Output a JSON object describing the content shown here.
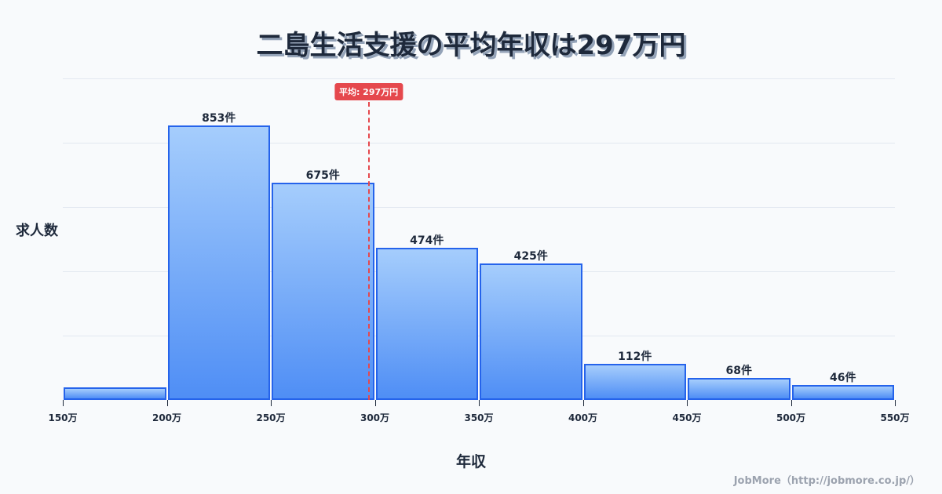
{
  "title": "二島生活支援の平均年収は297万円",
  "axes": {
    "ylabel": "求人数",
    "xlabel": "年収"
  },
  "mean": {
    "label": "平均: 297万円",
    "value": 297,
    "color": "#e5484d"
  },
  "credit": "JobMore（http://jobmore.co.jp/）",
  "ticks": [
    "150万",
    "200万",
    "250万",
    "300万",
    "350万",
    "400万",
    "450万",
    "500万",
    "550万"
  ],
  "bars": [
    {
      "range": "150-200万",
      "count": 39,
      "label": ""
    },
    {
      "range": "200-250万",
      "count": 853,
      "label": "853件"
    },
    {
      "range": "250-300万",
      "count": 675,
      "label": "675件"
    },
    {
      "range": "300-350万",
      "count": 474,
      "label": "474件"
    },
    {
      "range": "350-400万",
      "count": 425,
      "label": "425件"
    },
    {
      "range": "400-450万",
      "count": 112,
      "label": "112件"
    },
    {
      "range": "450-500万",
      "count": 68,
      "label": "68件"
    },
    {
      "range": "500-550万",
      "count": 46,
      "label": "46件"
    }
  ],
  "chart_data": {
    "type": "bar",
    "title": "二島生活支援の平均年収は297万円",
    "xlabel": "年収",
    "ylabel": "求人数",
    "categories": [
      "150-200万",
      "200-250万",
      "250-300万",
      "300-350万",
      "350-400万",
      "400-450万",
      "450-500万",
      "500-550万"
    ],
    "values": [
      39,
      853,
      675,
      474,
      425,
      112,
      68,
      46
    ],
    "x_ticks": [
      "150万",
      "200万",
      "250万",
      "300万",
      "350万",
      "400万",
      "450万",
      "500万",
      "550万"
    ],
    "annotations": [
      {
        "type": "vline",
        "x": 297,
        "label": "平均: 297万円",
        "color": "#e5484d",
        "style": "dashed"
      }
    ],
    "ylim": [
      0,
      1000
    ],
    "grid": true,
    "bar_color": "#4f8ef5",
    "bar_edge_color": "#2563eb"
  }
}
